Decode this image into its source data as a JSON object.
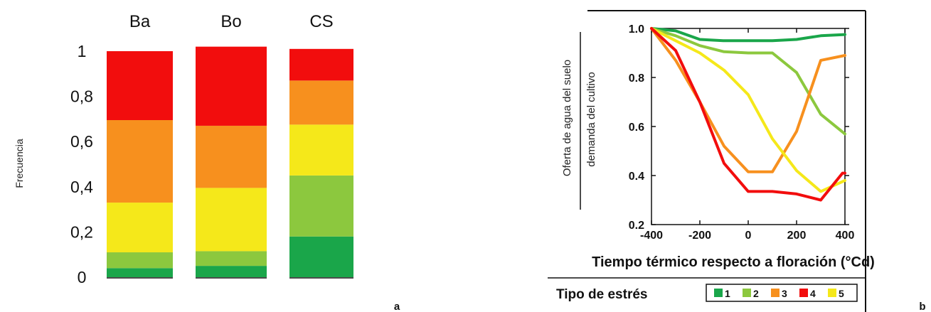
{
  "chart_data": [
    {
      "type": "bar",
      "stacked": true,
      "panel_label": "a",
      "categories": [
        "Ba",
        "Bo",
        "CS"
      ],
      "ylabel": "Frecuencia",
      "ylim": [
        0,
        1
      ],
      "yticks": [
        "0",
        "0,2",
        "0,4",
        "0,6",
        "0,8",
        "1"
      ],
      "segments_bottom_to_top_colors": [
        "#1aa64a",
        "#8cc83e",
        "#f5e81a",
        "#f7901e",
        "#f20d0d"
      ],
      "series": [
        {
          "values": [
            0.04,
            0.05,
            0.18
          ],
          "color": "#1aa64a"
        },
        {
          "values": [
            0.07,
            0.065,
            0.27
          ],
          "color": "#8cc83e"
        },
        {
          "values": [
            0.22,
            0.28,
            0.225
          ],
          "color": "#f5e81a"
        },
        {
          "values": [
            0.365,
            0.275,
            0.195
          ],
          "color": "#f7901e"
        },
        {
          "values": [
            0.305,
            0.35,
            0.14
          ],
          "color": "#f20d0d"
        }
      ]
    },
    {
      "type": "line",
      "panel_label": "b",
      "ylabel_top": "Oferta de agua del suelo",
      "ylabel_bottom": "demanda del cultivo",
      "xlabel": "Tiempo térmico respecto a floración (°Cd)",
      "xlim": [
        -400,
        400
      ],
      "ylim": [
        0.2,
        1.0
      ],
      "xticks": [
        "-400",
        "-200",
        "0",
        "200",
        "400"
      ],
      "yticks": [
        "0.2",
        "0.4",
        "0.6",
        "0.8",
        "1.0"
      ],
      "legend_title": "Tipo de estrés",
      "legend_position": "bottom",
      "series": [
        {
          "name": "1",
          "color": "#1aa64a",
          "x": [
            -400,
            -300,
            -200,
            -100,
            0,
            100,
            200,
            300,
            400
          ],
          "y": [
            1.0,
            0.99,
            0.955,
            0.95,
            0.95,
            0.95,
            0.955,
            0.97,
            0.975
          ]
        },
        {
          "name": "2",
          "color": "#8cc83e",
          "x": [
            -400,
            -300,
            -200,
            -100,
            0,
            100,
            200,
            300,
            400
          ],
          "y": [
            1.0,
            0.97,
            0.93,
            0.905,
            0.9,
            0.9,
            0.82,
            0.65,
            0.57
          ]
        },
        {
          "name": "3",
          "color": "#f7901e",
          "x": [
            -400,
            -300,
            -200,
            -100,
            0,
            100,
            200,
            300,
            400
          ],
          "y": [
            1.0,
            0.87,
            0.7,
            0.52,
            0.415,
            0.415,
            0.58,
            0.87,
            0.89
          ]
        },
        {
          "name": "4",
          "color": "#f20d0d",
          "x": [
            -400,
            -300,
            -200,
            -100,
            0,
            100,
            200,
            300,
            390,
            400
          ],
          "y": [
            1.0,
            0.91,
            0.7,
            0.45,
            0.335,
            0.335,
            0.325,
            0.3,
            0.41,
            0.41
          ]
        },
        {
          "name": "5",
          "color": "#f5e81a",
          "x": [
            -400,
            -300,
            -200,
            -100,
            0,
            100,
            200,
            300,
            400
          ],
          "y": [
            1.0,
            0.95,
            0.9,
            0.83,
            0.73,
            0.55,
            0.42,
            0.335,
            0.38
          ]
        }
      ]
    }
  ]
}
